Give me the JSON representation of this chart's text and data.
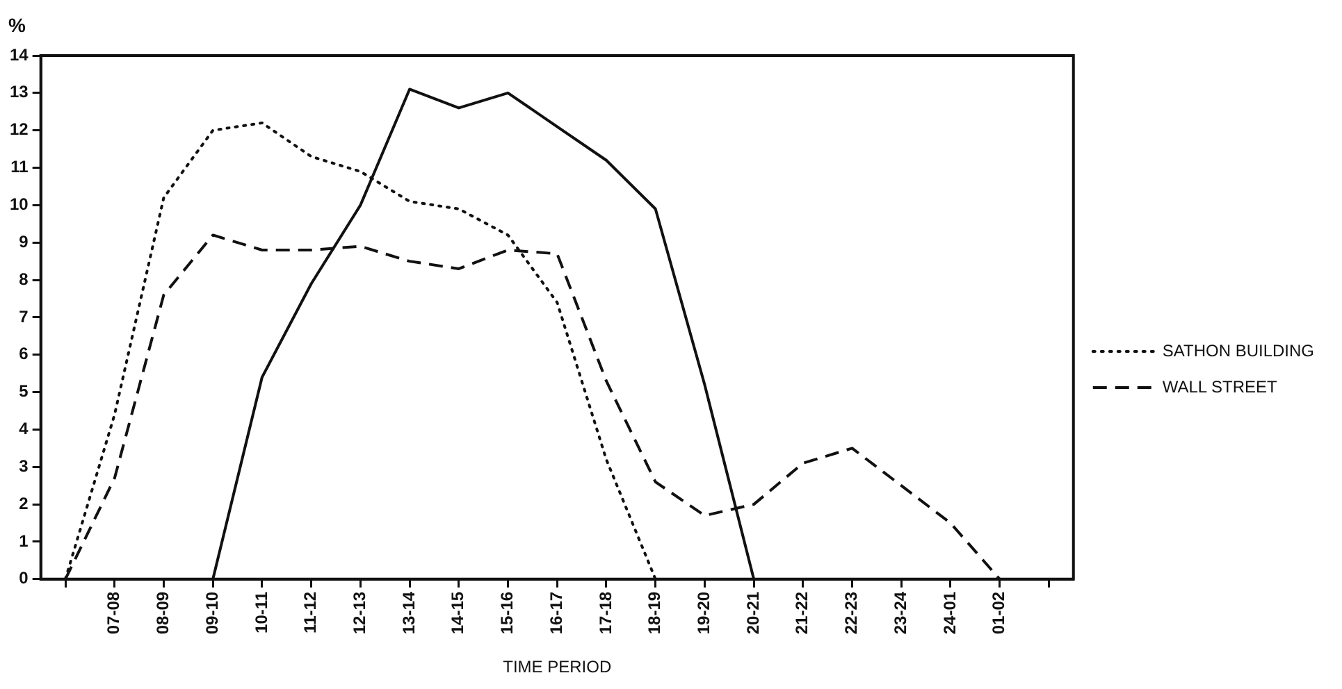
{
  "chart_data": {
    "type": "line",
    "xlabel": "TIME PERIOD",
    "ylabel": "%",
    "categories": [
      null,
      "07-08",
      "08-09",
      "09-10",
      "10-11",
      "11-12",
      "12-13",
      "13-14",
      "14-15",
      "15-16",
      "16-17",
      "17-18",
      "18-19",
      "19-20",
      "20-21",
      "21-22",
      "22-23",
      "23-24",
      "24-01",
      "01-02",
      null
    ],
    "series": [
      {
        "color": "#111111",
        "line_style": "solid",
        "values": [
          null,
          null,
          null,
          0,
          5.4,
          7.9,
          10,
          13.1,
          12.6,
          13,
          12.1,
          11.2,
          9.9,
          5.2,
          0,
          null,
          null,
          null,
          null,
          null,
          null
        ]
      },
      {
        "name": "SATHON BUILDING",
        "color": "#111111",
        "line_style": "dotted",
        "values": [
          0,
          4.4,
          10.2,
          12,
          12.2,
          11.3,
          10.9,
          10.1,
          9.9,
          9.2,
          7.4,
          3.2,
          0,
          null,
          null,
          null,
          null,
          null,
          null,
          null,
          null
        ]
      },
      {
        "name": "WALL STREET",
        "color": "#111111",
        "line_style": "dashed",
        "values": [
          0,
          2.7,
          7.6,
          9.2,
          8.8,
          8.8,
          8.9,
          8.5,
          8.3,
          8.8,
          8.7,
          5.3,
          2.6,
          1.7,
          2,
          3.1,
          3.5,
          2.5,
          1.5,
          0,
          null
        ]
      }
    ],
    "ylim": [
      0,
      14
    ],
    "yticks": [
      0,
      1,
      2,
      3,
      4,
      5,
      6,
      7,
      8,
      9,
      10,
      11,
      12,
      13,
      14
    ],
    "legend": "right"
  }
}
